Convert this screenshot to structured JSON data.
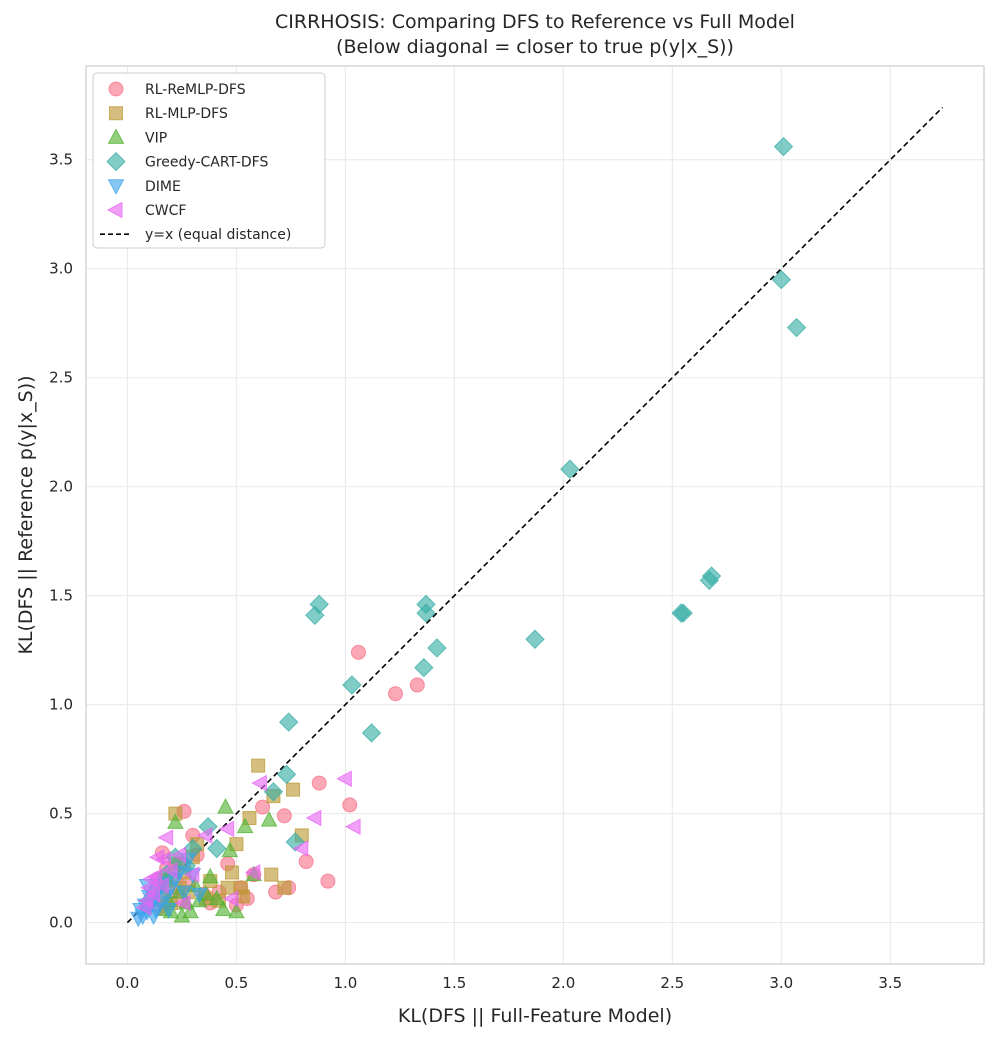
{
  "chart_data": {
    "type": "scatter",
    "title": [
      "CIRRHOSIS: Comparing DFS to Reference vs Full Model",
      "(Below diagonal = closer to true p(y|x_S))"
    ],
    "xlabel": "KL(DFS || Full-Feature Model)",
    "ylabel": "KL(DFS || Reference p(y|x_S))",
    "xlim": [
      -0.19,
      3.93
    ],
    "ylim": [
      -0.19,
      3.93
    ],
    "xticks": [
      0.0,
      0.5,
      1.0,
      1.5,
      2.0,
      2.5,
      3.0,
      3.5
    ],
    "yticks": [
      0.0,
      0.5,
      1.0,
      1.5,
      2.0,
      2.5,
      3.0,
      3.5
    ],
    "xtick_labels": [
      "0.0",
      "0.5",
      "1.0",
      "1.5",
      "2.0",
      "2.5",
      "3.0",
      "3.5"
    ],
    "ytick_labels": [
      "0.0",
      "0.5",
      "1.0",
      "1.5",
      "2.0",
      "2.5",
      "3.0",
      "3.5"
    ],
    "grid": true,
    "legend_position": "top-left",
    "reference_line": {
      "name": "y=x (equal distance)",
      "from": [
        0.0,
        0.0
      ],
      "to": [
        3.74,
        3.74
      ],
      "color": "#000000",
      "style": "dashed"
    },
    "series": [
      {
        "name": "RL-ReMLP-DFS",
        "marker": "circle",
        "color": "#f77189",
        "points": [
          [
            1.06,
            1.24
          ],
          [
            1.23,
            1.05
          ],
          [
            1.33,
            1.09
          ],
          [
            1.02,
            0.54
          ],
          [
            0.88,
            0.64
          ],
          [
            0.82,
            0.28
          ],
          [
            0.92,
            0.19
          ],
          [
            0.74,
            0.16
          ],
          [
            0.72,
            0.49
          ],
          [
            0.68,
            0.14
          ],
          [
            0.62,
            0.53
          ],
          [
            0.58,
            0.22
          ],
          [
            0.55,
            0.11
          ],
          [
            0.52,
            0.16
          ],
          [
            0.5,
            0.08
          ],
          [
            0.46,
            0.27
          ],
          [
            0.42,
            0.14
          ],
          [
            0.38,
            0.09
          ],
          [
            0.35,
            0.13
          ],
          [
            0.32,
            0.31
          ],
          [
            0.3,
            0.4
          ],
          [
            0.28,
            0.18
          ],
          [
            0.26,
            0.51
          ],
          [
            0.25,
            0.1
          ],
          [
            0.24,
            0.27
          ],
          [
            0.22,
            0.2
          ],
          [
            0.2,
            0.14
          ],
          [
            0.18,
            0.25
          ],
          [
            0.17,
            0.09
          ],
          [
            0.16,
            0.32
          ],
          [
            0.15,
            0.07
          ],
          [
            0.14,
            0.2
          ]
        ]
      },
      {
        "name": "RL-MLP-DFS",
        "marker": "square",
        "color": "#bb9832",
        "points": [
          [
            0.6,
            0.72
          ],
          [
            0.76,
            0.61
          ],
          [
            0.8,
            0.4
          ],
          [
            0.67,
            0.58
          ],
          [
            0.66,
            0.22
          ],
          [
            0.72,
            0.16
          ],
          [
            0.52,
            0.16
          ],
          [
            0.53,
            0.12
          ],
          [
            0.56,
            0.48
          ],
          [
            0.5,
            0.36
          ],
          [
            0.48,
            0.23
          ],
          [
            0.46,
            0.16
          ],
          [
            0.42,
            0.1
          ],
          [
            0.38,
            0.19
          ],
          [
            0.36,
            0.11
          ],
          [
            0.32,
            0.36
          ],
          [
            0.3,
            0.3
          ],
          [
            0.28,
            0.14
          ],
          [
            0.26,
            0.23
          ],
          [
            0.24,
            0.16
          ],
          [
            0.22,
            0.5
          ],
          [
            0.22,
            0.27
          ],
          [
            0.2,
            0.09
          ],
          [
            0.18,
            0.19
          ],
          [
            0.16,
            0.12
          ]
        ]
      },
      {
        "name": "VIP",
        "marker": "triangle-up",
        "color": "#50b131",
        "points": [
          [
            0.45,
            0.53
          ],
          [
            0.54,
            0.44
          ],
          [
            0.58,
            0.22
          ],
          [
            0.65,
            0.47
          ],
          [
            0.47,
            0.33
          ],
          [
            0.5,
            0.05
          ],
          [
            0.44,
            0.06
          ],
          [
            0.41,
            0.11
          ],
          [
            0.38,
            0.21
          ],
          [
            0.36,
            0.13
          ],
          [
            0.33,
            0.1
          ],
          [
            0.31,
            0.17
          ],
          [
            0.29,
            0.05
          ],
          [
            0.27,
            0.09
          ],
          [
            0.25,
            0.03
          ],
          [
            0.24,
            0.14
          ],
          [
            0.22,
            0.46
          ],
          [
            0.2,
            0.05
          ],
          [
            0.19,
            0.1
          ],
          [
            0.18,
            0.2
          ],
          [
            0.17,
            0.06
          ]
        ]
      },
      {
        "name": "Greedy-CART-DFS",
        "marker": "diamond",
        "color": "#36ada4",
        "points": [
          [
            3.01,
            3.56
          ],
          [
            3.0,
            2.95
          ],
          [
            3.07,
            2.73
          ],
          [
            2.03,
            2.08
          ],
          [
            2.68,
            1.59
          ],
          [
            2.67,
            1.57
          ],
          [
            2.55,
            1.42
          ],
          [
            2.54,
            1.42
          ],
          [
            1.87,
            1.3
          ],
          [
            1.42,
            1.26
          ],
          [
            1.37,
            1.46
          ],
          [
            1.37,
            1.42
          ],
          [
            1.36,
            1.17
          ],
          [
            1.12,
            0.87
          ],
          [
            1.03,
            1.09
          ],
          [
            0.88,
            1.46
          ],
          [
            0.86,
            1.41
          ],
          [
            0.74,
            0.92
          ],
          [
            0.73,
            0.68
          ],
          [
            0.67,
            0.6
          ],
          [
            0.77,
            0.37
          ],
          [
            0.41,
            0.34
          ],
          [
            0.37,
            0.44
          ],
          [
            0.3,
            0.34
          ],
          [
            0.27,
            0.26
          ],
          [
            0.22,
            0.3
          ],
          [
            0.18,
            0.22
          ],
          [
            0.14,
            0.16
          ],
          [
            0.1,
            0.1
          ]
        ]
      },
      {
        "name": "DIME",
        "marker": "triangle-down",
        "color": "#3ba3ec",
        "points": [
          [
            0.28,
            0.29
          ],
          [
            0.24,
            0.23
          ],
          [
            0.2,
            0.16
          ],
          [
            0.18,
            0.12
          ],
          [
            0.16,
            0.18
          ],
          [
            0.15,
            0.09
          ],
          [
            0.14,
            0.14
          ],
          [
            0.13,
            0.06
          ],
          [
            0.12,
            0.11
          ],
          [
            0.11,
            0.08
          ],
          [
            0.1,
            0.12
          ],
          [
            0.09,
            0.05
          ],
          [
            0.08,
            0.08
          ],
          [
            0.07,
            0.03
          ],
          [
            0.06,
            0.06
          ],
          [
            0.05,
            0.02
          ],
          [
            0.09,
            0.17
          ],
          [
            0.12,
            0.03
          ],
          [
            0.19,
            0.06
          ],
          [
            0.22,
            0.2
          ],
          [
            0.26,
            0.14
          ],
          [
            0.3,
            0.22
          ],
          [
            0.33,
            0.13
          ]
        ]
      },
      {
        "name": "CWCF",
        "marker": "triangle-left",
        "color": "#e866f4",
        "points": [
          [
            1.0,
            0.66
          ],
          [
            1.04,
            0.44
          ],
          [
            0.86,
            0.48
          ],
          [
            0.8,
            0.34
          ],
          [
            0.61,
            0.64
          ],
          [
            0.58,
            0.23
          ],
          [
            0.48,
            0.11
          ],
          [
            0.46,
            0.43
          ],
          [
            0.36,
            0.4
          ],
          [
            0.3,
            0.22
          ],
          [
            0.26,
            0.09
          ],
          [
            0.24,
            0.31
          ],
          [
            0.2,
            0.24
          ],
          [
            0.18,
            0.39
          ],
          [
            0.17,
            0.29
          ],
          [
            0.16,
            0.17
          ],
          [
            0.14,
            0.3
          ],
          [
            0.13,
            0.21
          ],
          [
            0.12,
            0.13
          ],
          [
            0.11,
            0.2
          ],
          [
            0.1,
            0.16
          ],
          [
            0.09,
            0.1
          ],
          [
            0.08,
            0.07
          ]
        ]
      }
    ]
  }
}
